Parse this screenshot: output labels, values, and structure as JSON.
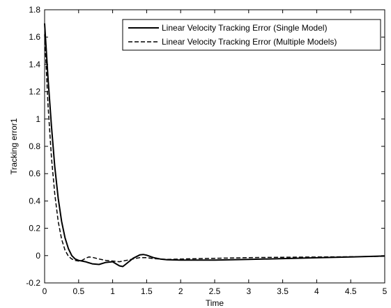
{
  "chart_data": {
    "type": "line",
    "xlabel": "Time",
    "ylabel": "Tracking error1",
    "xlim": [
      0,
      5
    ],
    "ylim": [
      -0.2,
      1.8
    ],
    "x_ticks": [
      "0",
      "0.5",
      "1",
      "1.5",
      "2",
      "2.5",
      "3",
      "3.5",
      "4",
      "4.5",
      "5"
    ],
    "y_ticks": [
      "-0.2",
      "0",
      "0.2",
      "0.4",
      "0.6",
      "0.8",
      "1",
      "1.2",
      "1.4",
      "1.6",
      "1.8"
    ],
    "grid": false,
    "legend_position": "top-right",
    "series": [
      {
        "name": "Linear Velocity Tracking Error (Single Model)",
        "style": "solid",
        "x": [
          0,
          0.05,
          0.1,
          0.15,
          0.2,
          0.25,
          0.3,
          0.35,
          0.4,
          0.45,
          0.5,
          0.55,
          0.6,
          0.7,
          0.8,
          0.9,
          1.0,
          1.05,
          1.1,
          1.15,
          1.2,
          1.3,
          1.4,
          1.45,
          1.5,
          1.6,
          1.7,
          1.8,
          2.0,
          2.5,
          3.0,
          3.5,
          4.0,
          4.5,
          5.0
        ],
        "values": [
          1.7,
          1.3,
          0.95,
          0.65,
          0.42,
          0.25,
          0.13,
          0.05,
          0.0,
          -0.025,
          -0.035,
          -0.04,
          -0.045,
          -0.06,
          -0.065,
          -0.05,
          -0.045,
          -0.06,
          -0.075,
          -0.08,
          -0.06,
          -0.02,
          0.005,
          0.008,
          0.003,
          -0.015,
          -0.025,
          -0.03,
          -0.033,
          -0.033,
          -0.028,
          -0.022,
          -0.016,
          -0.01,
          -0.003
        ]
      },
      {
        "name": "Linear Velocity Tracking Error (Multiple Models)",
        "style": "dashed",
        "x": [
          0,
          0.05,
          0.1,
          0.15,
          0.2,
          0.25,
          0.3,
          0.35,
          0.4,
          0.45,
          0.5,
          0.55,
          0.6,
          0.65,
          0.7,
          0.8,
          0.9,
          1.0,
          1.1,
          1.2,
          1.3,
          1.4,
          1.5,
          1.6,
          1.8,
          2.0,
          2.5,
          3.0,
          3.5,
          4.0,
          4.5,
          5.0
        ],
        "values": [
          1.62,
          1.1,
          0.72,
          0.45,
          0.25,
          0.12,
          0.04,
          -0.005,
          -0.025,
          -0.035,
          -0.04,
          -0.035,
          -0.02,
          -0.01,
          -0.012,
          -0.025,
          -0.035,
          -0.04,
          -0.045,
          -0.035,
          -0.025,
          -0.015,
          -0.015,
          -0.022,
          -0.028,
          -0.025,
          -0.02,
          -0.015,
          -0.012,
          -0.01,
          -0.008,
          -0.005
        ]
      }
    ]
  }
}
